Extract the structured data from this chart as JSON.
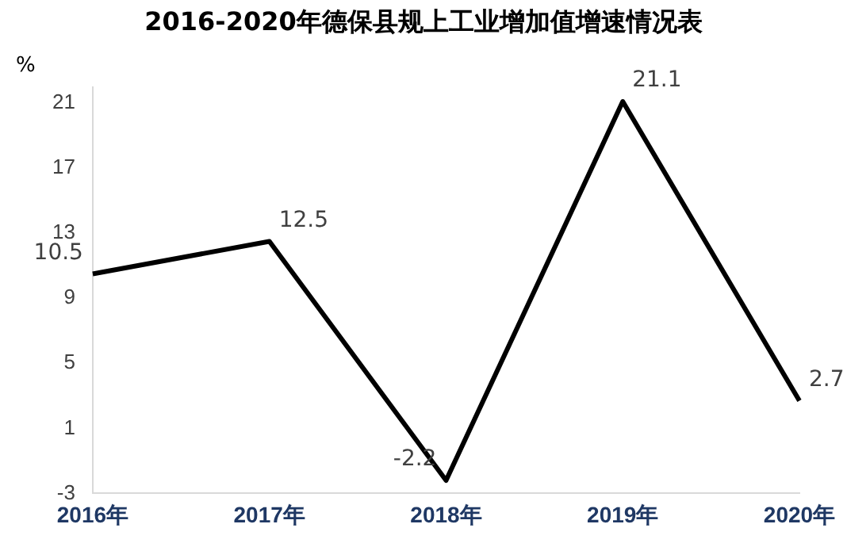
{
  "chart_data": {
    "type": "line",
    "title": "2016-2020年德保县规上工业增加值增速情况表",
    "ylabel": "%",
    "categories": [
      "2016年",
      "2017年",
      "2018年",
      "2019年",
      "2020年"
    ],
    "series": [
      {
        "color": "#000000",
        "values": [
          10.5,
          12.5,
          -2.2,
          21.1,
          2.7
        ]
      }
    ],
    "ylim": [
      -3,
      22
    ],
    "yticks": [
      -3,
      1,
      5,
      9,
      13,
      17,
      21
    ],
    "grid": false,
    "legend": false,
    "marker": "none",
    "line_style": "solid",
    "data_labels": true
  }
}
